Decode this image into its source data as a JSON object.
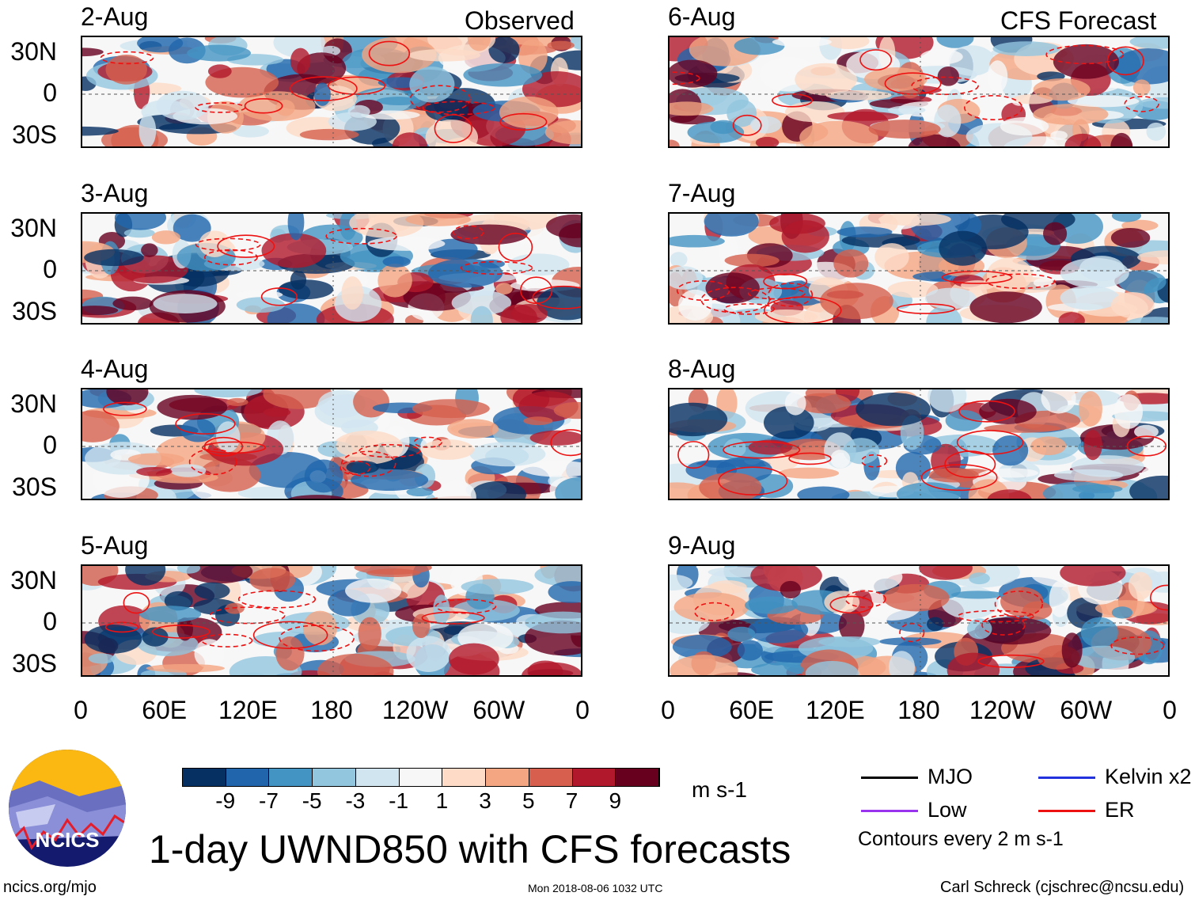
{
  "headers": {
    "observed": "Observed",
    "forecast": "CFS Forecast"
  },
  "panels": [
    {
      "date": "2-Aug",
      "type": "observed"
    },
    {
      "date": "3-Aug",
      "type": "observed"
    },
    {
      "date": "4-Aug",
      "type": "observed"
    },
    {
      "date": "5-Aug",
      "type": "observed"
    },
    {
      "date": "6-Aug",
      "type": "forecast"
    },
    {
      "date": "7-Aug",
      "type": "forecast"
    },
    {
      "date": "8-Aug",
      "type": "forecast"
    },
    {
      "date": "9-Aug",
      "type": "forecast"
    }
  ],
  "lat_ticks": [
    "30N",
    "0",
    "30S"
  ],
  "lon_ticks": [
    "0",
    "60E",
    "120E",
    "180",
    "120W",
    "60W",
    "0"
  ],
  "colorbar": {
    "colors": [
      "#053061",
      "#2166ac",
      "#4393c3",
      "#92c5de",
      "#d1e5f0",
      "#f7f7f7",
      "#fddbc7",
      "#f4a582",
      "#d6604d",
      "#b2182b",
      "#67001f"
    ],
    "labels": [
      "-9",
      "-7",
      "-5",
      "-3",
      "-1",
      "1",
      "3",
      "5",
      "7",
      "9"
    ],
    "units": "m s-1"
  },
  "legend": {
    "items": [
      {
        "label": "MJO",
        "color": "#000000"
      },
      {
        "label": "Kelvin x2",
        "color": "#2233dd"
      },
      {
        "label": "Low",
        "color": "#9933ee"
      },
      {
        "label": "ER",
        "color": "#ee1111"
      }
    ],
    "note": "Contours every 2 m s-1"
  },
  "title": "1-day UWND850 with CFS forecasts",
  "logo_text": "NCICS",
  "footer": {
    "left": "ncics.org/mjo",
    "center": "Mon 2018-08-06 1032 UTC",
    "right": "Carl Schreck (cjschrec@ncsu.edu)"
  }
}
